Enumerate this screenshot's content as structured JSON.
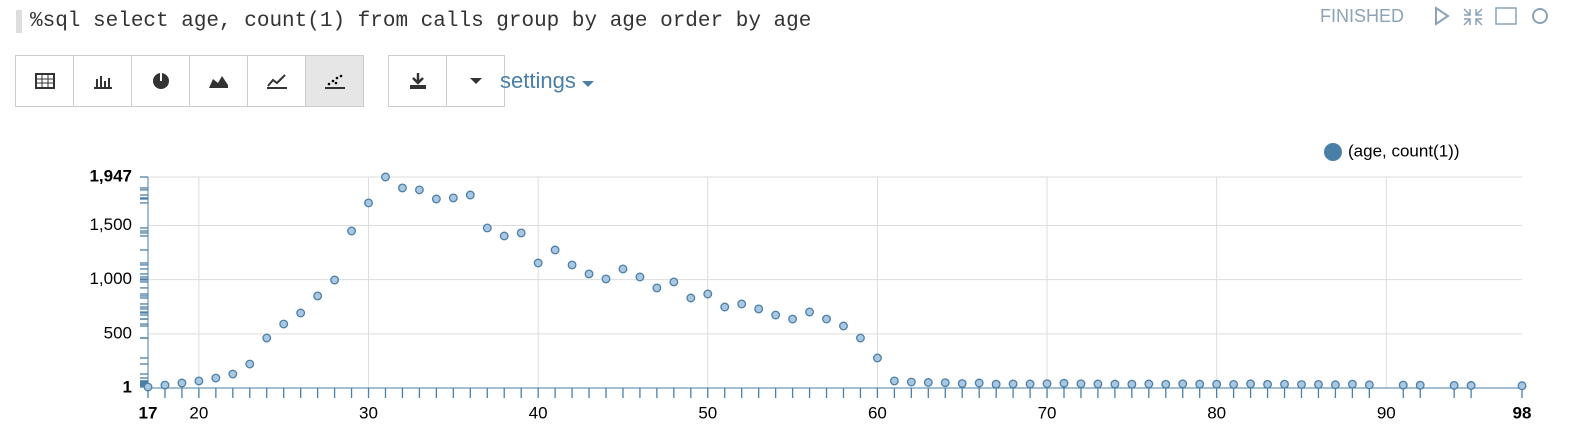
{
  "paragraph": {
    "code": "%sql select age, count(1) from calls group by age order by age",
    "status": "FINISHED",
    "settings": "settings"
  },
  "chart_data": {
    "type": "scatter",
    "series": [
      {
        "name": "(age, count(1))",
        "color": "#4a7fa8",
        "x": [
          17,
          18,
          19,
          20,
          21,
          22,
          23,
          24,
          25,
          26,
          27,
          28,
          29,
          30,
          31,
          32,
          33,
          34,
          35,
          36,
          37,
          38,
          39,
          40,
          41,
          42,
          43,
          44,
          45,
          46,
          47,
          48,
          49,
          50,
          51,
          52,
          53,
          54,
          55,
          56,
          57,
          58,
          59,
          60,
          61,
          62,
          63,
          64,
          65,
          66,
          67,
          68,
          69,
          70,
          71,
          72,
          73,
          74,
          75,
          76,
          77,
          78,
          79,
          80,
          81,
          82,
          83,
          84,
          85,
          86,
          87,
          88,
          89,
          91,
          92,
          94,
          95,
          98
        ],
        "values": [
          10,
          28,
          47,
          66,
          93,
          130,
          222,
          462,
          591,
          693,
          850,
          997,
          1449,
          1708,
          1947,
          1846,
          1828,
          1744,
          1754,
          1781,
          1477,
          1403,
          1431,
          1154,
          1274,
          1136,
          1053,
          1007,
          1099,
          1025,
          924,
          979,
          831,
          868,
          748,
          776,
          730,
          674,
          637,
          702,
          637,
          573,
          462,
          278,
          66,
          56,
          52,
          50,
          42,
          47,
          36,
          38,
          38,
          41,
          45,
          40,
          38,
          37,
          36,
          38,
          35,
          39,
          37,
          36,
          34,
          39,
          35,
          36,
          33,
          34,
          31,
          36,
          30,
          28,
          27,
          25,
          24,
          22
        ]
      }
    ],
    "xlim": [
      17,
      98
    ],
    "ylim": [
      1,
      1947
    ],
    "xticks": [
      17,
      20,
      30,
      40,
      50,
      60,
      70,
      80,
      90,
      98
    ],
    "yticks": [
      1,
      500,
      {
        "value": 1000,
        "label": "1,000"
      },
      {
        "value": 1500,
        "label": "1,500"
      },
      {
        "value": 1947,
        "label": "1,947"
      }
    ],
    "grid": true,
    "legend": "top-right"
  }
}
